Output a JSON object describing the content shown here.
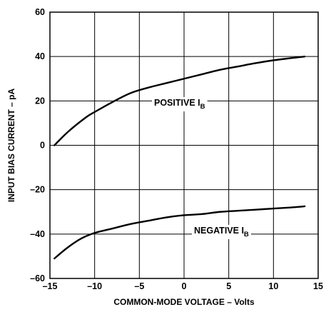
{
  "chart_data": {
    "type": "line",
    "title": "",
    "xlabel": "COMMON-MODE VOLTAGE – Volts",
    "ylabel": "INPUT BIAS CURRENT – pA",
    "xlim": [
      -15,
      15
    ],
    "ylim": [
      -60,
      60
    ],
    "x_ticks": [
      -15,
      -10,
      -5,
      0,
      5,
      10,
      15
    ],
    "y_ticks": [
      -60,
      -40,
      -20,
      0,
      20,
      40,
      60
    ],
    "x_tick_labels": [
      "–15",
      "–10",
      "–5",
      "0",
      "5",
      "10",
      "15"
    ],
    "y_tick_labels": [
      "–60",
      "–40",
      "–20",
      "0",
      "20",
      "40",
      "60"
    ],
    "grid": true,
    "legend": "none",
    "series": [
      {
        "name": "POSITIVE I",
        "subscript": "B",
        "color": "#000000",
        "points": [
          [
            -14.5,
            0
          ],
          [
            -13,
            6
          ],
          [
            -11,
            12.5
          ],
          [
            -10,
            15
          ],
          [
            -8,
            19.5
          ],
          [
            -6,
            23.5
          ],
          [
            -4,
            26
          ],
          [
            -2,
            28
          ],
          [
            0,
            30
          ],
          [
            2,
            32
          ],
          [
            4,
            34
          ],
          [
            6,
            35.5
          ],
          [
            8,
            37
          ],
          [
            10,
            38.3
          ],
          [
            12,
            39.3
          ],
          [
            13.5,
            40
          ]
        ]
      },
      {
        "name": "NEGATIVE I",
        "subscript": "B",
        "color": "#000000",
        "points": [
          [
            -14.5,
            -51
          ],
          [
            -13,
            -46
          ],
          [
            -11.5,
            -42
          ],
          [
            -10,
            -39.5
          ],
          [
            -8,
            -37.5
          ],
          [
            -6,
            -35.5
          ],
          [
            -4,
            -34
          ],
          [
            -2,
            -32.5
          ],
          [
            0,
            -31.5
          ],
          [
            2,
            -31
          ],
          [
            4,
            -30
          ],
          [
            6,
            -29.5
          ],
          [
            8,
            -29
          ],
          [
            10,
            -28.5
          ],
          [
            12,
            -28
          ],
          [
            13.5,
            -27.5
          ]
        ]
      }
    ],
    "annotations": [
      {
        "series": 0,
        "text": "POSITIVE I",
        "sub": "B"
      },
      {
        "series": 1,
        "text": "NEGATIVE I",
        "sub": "B"
      }
    ]
  }
}
